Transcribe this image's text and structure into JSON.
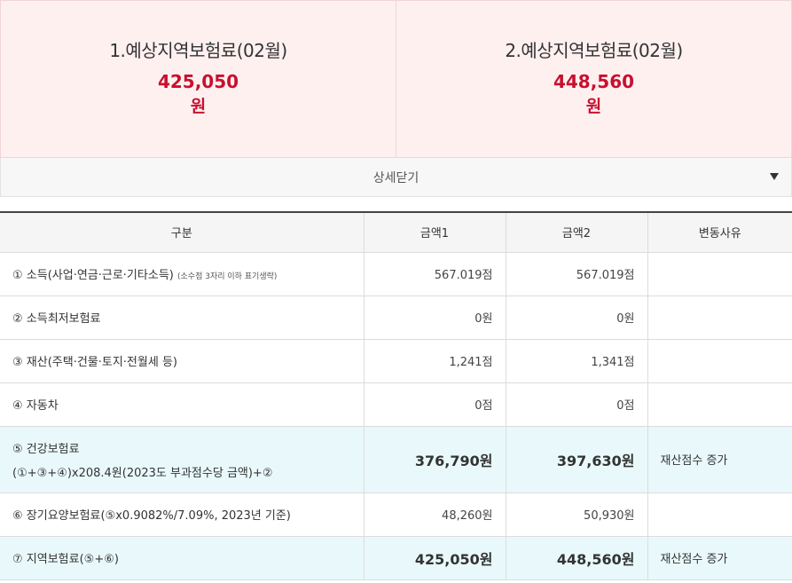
{
  "summary": [
    {
      "title": "1.예상지역보험료(02월)",
      "amount": "425,050",
      "unit": "원"
    },
    {
      "title": "2.예상지역보험료(02월)",
      "amount": "448,560",
      "unit": "원"
    }
  ],
  "toggle": {
    "label": "상세닫기",
    "icon": "triangle-down-icon"
  },
  "table": {
    "headers": [
      "구분",
      "금액1",
      "금액2",
      "변동사유"
    ],
    "rows": [
      {
        "item": "① 소득(사업·연금·근로·기타소득)",
        "note": "(소수점 3자리 이하 표기생략)",
        "amount1": "567.019점",
        "amount2": "567.019점",
        "reason": ""
      },
      {
        "item": "② 소득최저보험료",
        "amount1": "0원",
        "amount2": "0원",
        "reason": ""
      },
      {
        "item": "③ 재산(주택·건물·토지·전월세 등)",
        "amount1": "1,241점",
        "amount2": "1,341점",
        "reason": ""
      },
      {
        "item": "④ 자동차",
        "amount1": "0점",
        "amount2": "0점",
        "reason": ""
      },
      {
        "item": "⑤ 건강보험료",
        "item_line2": "(①+③+④)x208.4원(2023도 부과점수당 금액)+②",
        "amount1": "376,790원",
        "amount2": "397,630원",
        "reason": "재산점수 증가"
      },
      {
        "item": "⑥ 장기요양보험료(⑤x0.9082%/7.09%, 2023년 기준)",
        "amount1": "48,260원",
        "amount2": "50,930원",
        "reason": ""
      },
      {
        "item": "⑦ 지역보험료(⑤+⑥)",
        "amount1": "425,050원",
        "amount2": "448,560원",
        "reason": "재산점수 증가"
      }
    ]
  },
  "colors": {
    "accent_red": "#c8102e",
    "summary_bg": "#fff0f0",
    "highlight_row_bg": "#e9f9fb"
  }
}
